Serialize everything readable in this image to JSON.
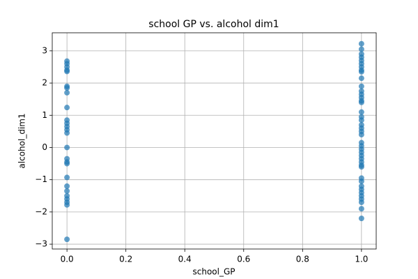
{
  "chart_data": {
    "type": "scatter",
    "title": "school GP vs. alcohol dim1",
    "x_label": "school_GP",
    "y_label": "alcohol_dim1",
    "color": "#1f77b4",
    "grid": true,
    "xlim": [
      -0.05,
      1.05
    ],
    "ylim": [
      -3.15,
      3.56
    ],
    "xticks": [
      {
        "value": 0,
        "label": "0.0"
      },
      {
        "value": 0.2,
        "label": "0.2"
      },
      {
        "value": 0.4,
        "label": "0.4"
      },
      {
        "value": 0.6,
        "label": "0.6"
      },
      {
        "value": 0.8,
        "label": "0.8"
      },
      {
        "value": 1,
        "label": "1.0"
      }
    ],
    "yticks": [
      {
        "value": -3,
        "label": "−3"
      },
      {
        "value": -2,
        "label": "−2"
      },
      {
        "value": -1,
        "label": "−1"
      },
      0,
      1,
      2,
      3
    ],
    "x": [
      0,
      0,
      0,
      0,
      0,
      0,
      0,
      0,
      0,
      0,
      0,
      0,
      0,
      0,
      0,
      0,
      0,
      0,
      0,
      0,
      0,
      0,
      0,
      0,
      0,
      0,
      1,
      1,
      1,
      1,
      1,
      1,
      1,
      1,
      1,
      1,
      1,
      1,
      1,
      1,
      1,
      1,
      1,
      1,
      1,
      1,
      1,
      1,
      1,
      1,
      1,
      1,
      1,
      1,
      1,
      1,
      1,
      1,
      1,
      1,
      1,
      1,
      1,
      1,
      1,
      1,
      1,
      1
    ],
    "y": [
      2.68,
      2.6,
      2.5,
      2.4,
      2.36,
      1.9,
      1.85,
      1.7,
      1.24,
      0.85,
      0.75,
      0.65,
      0.55,
      0.45,
      0,
      -0.35,
      -0.45,
      -0.5,
      -0.93,
      -1.2,
      -1.35,
      -1.5,
      -1.6,
      -1.7,
      -1.78,
      -2.85,
      3.22,
      3.05,
      2.9,
      2.8,
      2.7,
      2.6,
      2.5,
      2.4,
      2.35,
      2.15,
      1.9,
      1.75,
      1.65,
      1.55,
      1.45,
      1.4,
      1.1,
      0.95,
      0.85,
      0.7,
      0.6,
      0.5,
      0.4,
      0.15,
      0.05,
      -0.05,
      -0.15,
      -0.25,
      -0.35,
      -0.45,
      -0.55,
      -0.6,
      -0.95,
      -1.05,
      -1.2,
      -1.3,
      -1.4,
      -1.5,
      -1.6,
      -1.7,
      -1.9,
      -2.2
    ]
  }
}
